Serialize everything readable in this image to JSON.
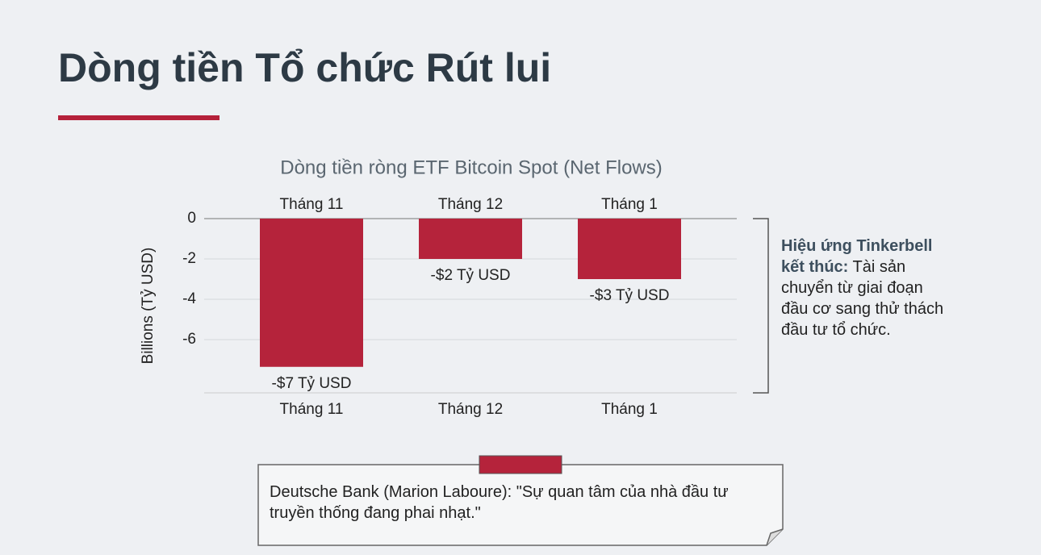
{
  "page_title": "Dòng tiền Tổ chức Rút lui",
  "chart_data": {
    "type": "bar",
    "title": "Dòng tiền ròng ETF Bitcoin Spot (Net Flows)",
    "y_label": "Billions (Tỷ USD)",
    "categories": [
      "Tháng 11",
      "Tháng 12",
      "Tháng 1"
    ],
    "values": [
      -7.35,
      -2,
      -3
    ],
    "value_labels": [
      "-$7 Tỷ USD",
      "-$2 Tỷ USD",
      "-$3 Tỷ USD"
    ],
    "color": "#b5233b",
    "ylim": [
      -8.64,
      0
    ],
    "yticks": [
      0,
      -2,
      -4,
      -6
    ],
    "grid": true
  },
  "annotation": {
    "heading": "Hiệu ứng Tinkerbell kết thúc:",
    "text": "Tài sản chuyển từ giai đoạn đầu cơ sang thử thách đầu tư tổ chức."
  },
  "note": "Deutsche Bank (Marion Laboure): \"Sự quan tâm của nhà đầu tư truyền thống đang phai nhạt.\""
}
